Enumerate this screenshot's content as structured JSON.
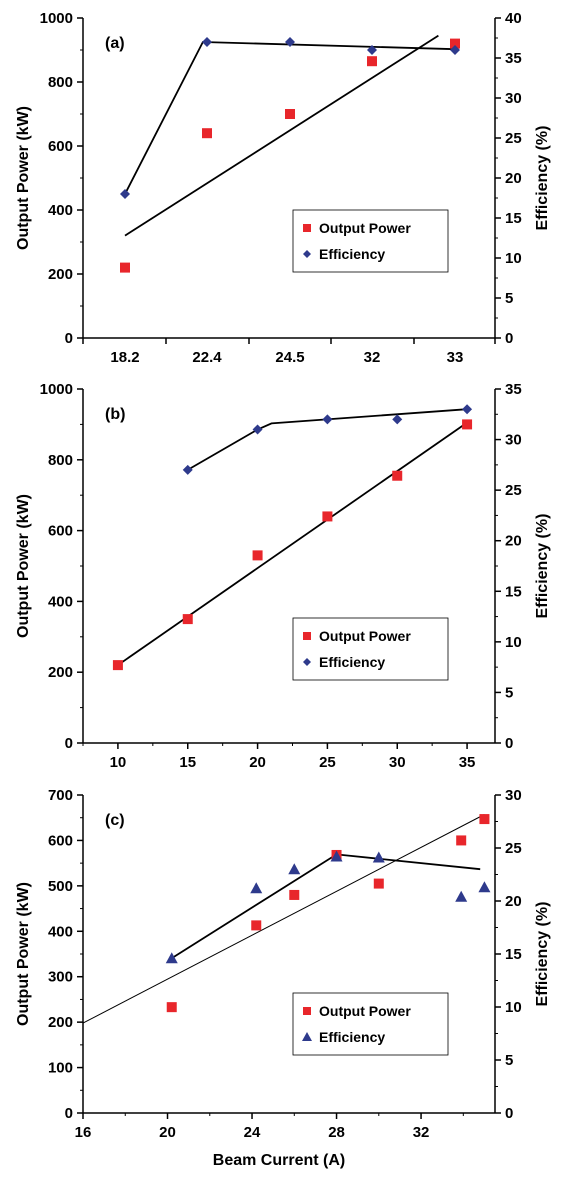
{
  "colors": {
    "power": "#e8262b",
    "efficiency": "#2e3a8c",
    "axis": "#000000"
  },
  "chart_data": [
    {
      "type": "scatter",
      "panel_label": "(a)",
      "x_scale": "categorical",
      "categories": [
        "18.2",
        "22.4",
        "24.5",
        "32",
        "33"
      ],
      "ylabel": "Output Power (kW)",
      "y2label": "Efficiency (%)",
      "ylim": [
        0,
        1000
      ],
      "yticks": [
        0,
        200,
        400,
        600,
        800,
        1000
      ],
      "y2lim": [
        0,
        40
      ],
      "y2ticks": [
        0,
        5,
        10,
        15,
        20,
        25,
        30,
        35,
        40
      ],
      "legend": {
        "items": [
          "Output Power",
          "Efficiency"
        ],
        "position": "center-right"
      },
      "series": [
        {
          "name": "Output Power",
          "axis": "left",
          "marker": "square",
          "x": [
            0,
            1,
            2,
            3,
            4
          ],
          "values": [
            220,
            640,
            700,
            865,
            920
          ]
        },
        {
          "name": "Efficiency",
          "axis": "right",
          "marker": "diamond",
          "x": [
            0,
            1,
            2,
            3,
            4
          ],
          "values": [
            18,
            37,
            37,
            36,
            36
          ]
        }
      ],
      "lines": [
        {
          "axis": "left",
          "points": [
            [
              0.0,
              320
            ],
            [
              3.8,
              945
            ]
          ]
        },
        {
          "axis": "right",
          "points": [
            [
              0.0,
              18.0
            ],
            [
              0.95,
              37.0
            ],
            [
              4.0,
              36.1
            ]
          ]
        }
      ]
    },
    {
      "type": "scatter",
      "panel_label": "(b)",
      "x_scale": "linear",
      "xlim": [
        7.5,
        37
      ],
      "xticks": [
        10,
        15,
        20,
        25,
        30,
        35
      ],
      "ylabel": "Output Power (kW)",
      "y2label": "Efficiency (%)",
      "ylim": [
        0,
        1000
      ],
      "yticks": [
        0,
        200,
        400,
        600,
        800,
        1000
      ],
      "y2lim": [
        0,
        35
      ],
      "y2ticks": [
        0,
        5,
        10,
        15,
        20,
        25,
        30,
        35
      ],
      "legend": {
        "items": [
          "Output Power",
          "Efficiency"
        ],
        "position": "bottom-right"
      },
      "series": [
        {
          "name": "Output Power",
          "axis": "left",
          "marker": "square",
          "x": [
            10,
            15,
            20,
            25,
            30,
            35
          ],
          "values": [
            220,
            350,
            530,
            640,
            755,
            900
          ]
        },
        {
          "name": "Efficiency",
          "axis": "right",
          "marker": "diamond",
          "x": [
            15,
            20,
            25,
            30,
            35
          ],
          "values": [
            27,
            31,
            32,
            32,
            33
          ]
        }
      ],
      "lines": [
        {
          "axis": "left",
          "points": [
            [
              10,
              220
            ],
            [
              35,
              905
            ]
          ]
        },
        {
          "axis": "right",
          "points": [
            [
              15,
              27.0
            ],
            [
              20,
              31.0
            ],
            [
              21,
              31.6
            ],
            [
              35,
              33.0
            ]
          ]
        }
      ]
    },
    {
      "type": "scatter",
      "panel_label": "(c)",
      "x_scale": "linear",
      "xlim": [
        16,
        35.5
      ],
      "xticks": [
        16,
        20,
        24,
        28,
        32
      ],
      "xlabel": "Beam Current (A)",
      "ylabel": "Output Power (kW)",
      "y2label": "Efficiency (%)",
      "ylim": [
        0,
        700
      ],
      "yticks": [
        0,
        100,
        200,
        300,
        400,
        500,
        600,
        700
      ],
      "y2lim": [
        0,
        30
      ],
      "y2ticks": [
        0,
        5,
        10,
        15,
        20,
        25,
        30
      ],
      "legend": {
        "items": [
          "Output Power",
          "Efficiency"
        ],
        "position": "bottom-right"
      },
      "series": [
        {
          "name": "Output Power",
          "axis": "left",
          "marker": "square",
          "x": [
            20.2,
            24.2,
            26,
            28,
            30,
            33.9,
            35
          ],
          "values": [
            233,
            413,
            480,
            568,
            505,
            600,
            647
          ]
        },
        {
          "name": "Efficiency",
          "axis": "right",
          "marker": "triangle",
          "x": [
            20.2,
            24.2,
            26,
            28,
            30,
            33.9,
            35
          ],
          "values": [
            14.6,
            21.2,
            23,
            24.2,
            24.1,
            20.4,
            21.3
          ]
        }
      ],
      "lines": [
        {
          "axis": "left",
          "thin": true,
          "points": [
            [
              16,
              198
            ],
            [
              35,
              657
            ]
          ]
        },
        {
          "axis": "right",
          "points": [
            [
              20.2,
              14.6
            ],
            [
              28,
              24.4
            ],
            [
              34.8,
              23.0
            ]
          ]
        }
      ]
    }
  ]
}
